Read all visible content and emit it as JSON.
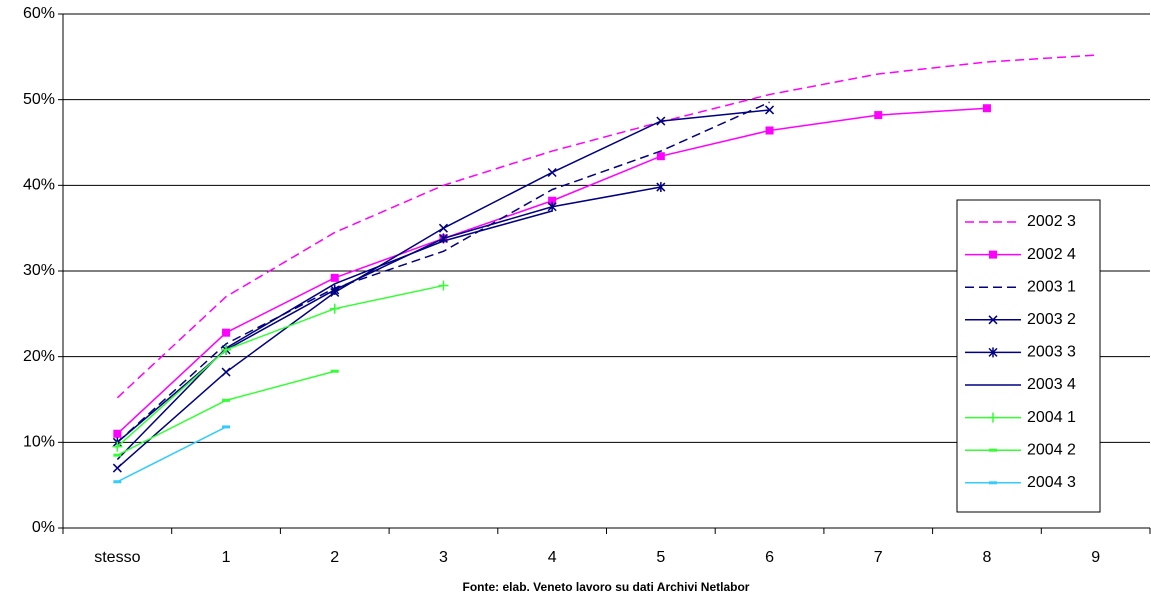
{
  "chart_data": {
    "type": "line",
    "footer": "Fonte: elab. Veneto lavoro su dati Archivi Netlabor",
    "categories": [
      "stesso",
      "1",
      "2",
      "3",
      "4",
      "5",
      "6",
      "7",
      "8",
      "9"
    ],
    "ylim": [
      0,
      60
    ],
    "yticks": [
      {
        "value": 0,
        "label": "0%"
      },
      {
        "value": 10,
        "label": "10%"
      },
      {
        "value": 20,
        "label": "20%"
      },
      {
        "value": 30,
        "label": "30%"
      },
      {
        "value": 40,
        "label": "40%"
      },
      {
        "value": 50,
        "label": "50%"
      },
      {
        "value": 60,
        "label": "60%"
      }
    ],
    "grid": true,
    "legend": "right",
    "series": [
      {
        "name": "2002 3",
        "color": "#ff00ff",
        "dash": "dashed",
        "marker": "none",
        "values": [
          15.2,
          27,
          34.5,
          40,
          44,
          47.4,
          50.6,
          53,
          54.4,
          55.2
        ]
      },
      {
        "name": "2002 4",
        "color": "#ff00ff",
        "dash": "solid",
        "marker": "square",
        "values": [
          11,
          22.8,
          29.2,
          33.8,
          38.2,
          43.4,
          46.4,
          48.2,
          49,
          null
        ]
      },
      {
        "name": "2003 1",
        "color": "#000080",
        "dash": "dashed",
        "marker": "none",
        "values": [
          10,
          21.5,
          28,
          32.3,
          39.5,
          44,
          49.7,
          null,
          null,
          null
        ]
      },
      {
        "name": "2003 2",
        "color": "#000080",
        "dash": "solid",
        "marker": "x",
        "values": [
          7,
          18.2,
          27.5,
          35,
          41.5,
          47.5,
          48.8,
          null,
          null,
          null
        ]
      },
      {
        "name": "2003 3",
        "color": "#000080",
        "dash": "solid",
        "marker": "asterisk",
        "values": [
          10,
          20.8,
          27.8,
          33.8,
          37.5,
          39.8,
          null,
          null,
          null,
          null
        ]
      },
      {
        "name": "2003 4",
        "color": "#000080",
        "dash": "solid",
        "marker": "none",
        "values": [
          8,
          21,
          28.5,
          33.5,
          37,
          null,
          null,
          null,
          null,
          null
        ]
      },
      {
        "name": "2004 1",
        "color": "#33ff33",
        "dash": "solid",
        "marker": "plus",
        "values": [
          9.5,
          20.8,
          25.6,
          28.3,
          null,
          null,
          null,
          null,
          null,
          null
        ]
      },
      {
        "name": "2004 2",
        "color": "#33ff33",
        "dash": "solid",
        "marker": "dash",
        "values": [
          8.5,
          14.9,
          18.3,
          null,
          null,
          null,
          null,
          null,
          null,
          null
        ]
      },
      {
        "name": "2004 3",
        "color": "#33ccff",
        "dash": "solid",
        "marker": "dash",
        "values": [
          5.4,
          11.8,
          null,
          null,
          null,
          null,
          null,
          null,
          null,
          null
        ]
      }
    ]
  }
}
